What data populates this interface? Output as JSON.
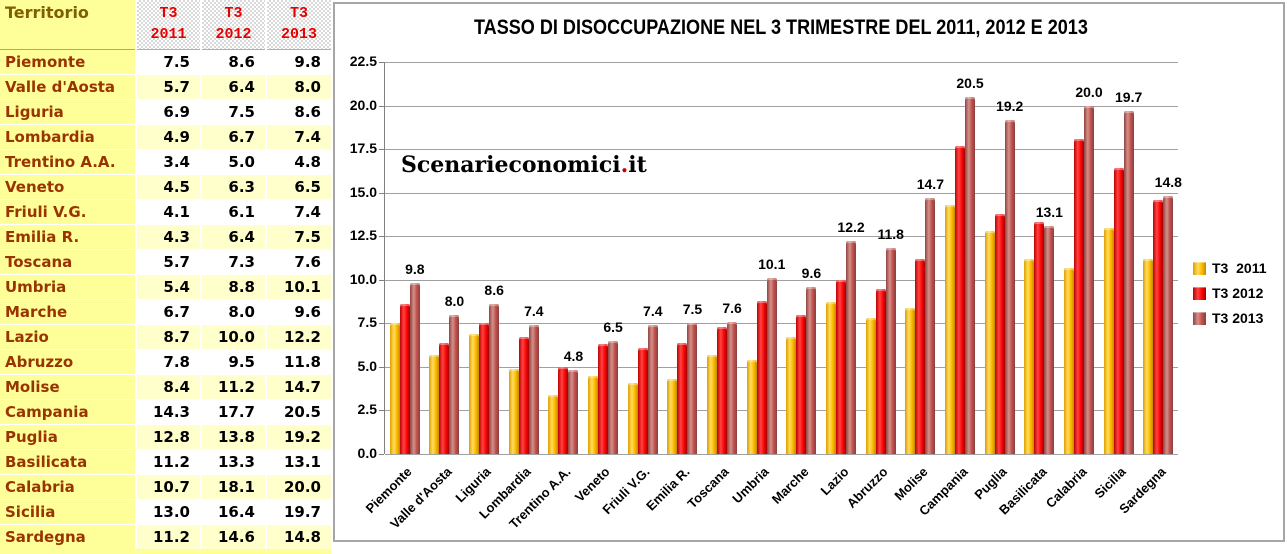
{
  "table": {
    "territory_header": "Territorio",
    "columns": [
      {
        "line1": "T3",
        "line2": "2011"
      },
      {
        "line1": "T3",
        "line2": "2012"
      },
      {
        "line1": "T3",
        "line2": "2013"
      }
    ],
    "rows": [
      {
        "name": "Piemonte",
        "values": [
          "7.5",
          "8.6",
          "9.8"
        ]
      },
      {
        "name": "Valle d'Aosta",
        "values": [
          "5.7",
          "6.4",
          "8.0"
        ]
      },
      {
        "name": "Liguria",
        "values": [
          "6.9",
          "7.5",
          "8.6"
        ]
      },
      {
        "name": "Lombardia",
        "values": [
          "4.9",
          "6.7",
          "7.4"
        ]
      },
      {
        "name": "Trentino A.A.",
        "values": [
          "3.4",
          "5.0",
          "4.8"
        ]
      },
      {
        "name": "Veneto",
        "values": [
          "4.5",
          "6.3",
          "6.5"
        ]
      },
      {
        "name": "Friuli V.G.",
        "values": [
          "4.1",
          "6.1",
          "7.4"
        ]
      },
      {
        "name": "Emilia R.",
        "values": [
          "4.3",
          "6.4",
          "7.5"
        ]
      },
      {
        "name": "Toscana",
        "values": [
          "5.7",
          "7.3",
          "7.6"
        ]
      },
      {
        "name": "Umbria",
        "values": [
          "5.4",
          "8.8",
          "10.1"
        ]
      },
      {
        "name": "Marche",
        "values": [
          "6.7",
          "8.0",
          "9.6"
        ]
      },
      {
        "name": "Lazio",
        "values": [
          "8.7",
          "10.0",
          "12.2"
        ]
      },
      {
        "name": "Abruzzo",
        "values": [
          "7.8",
          "9.5",
          "11.8"
        ]
      },
      {
        "name": "Molise",
        "values": [
          "8.4",
          "11.2",
          "14.7"
        ]
      },
      {
        "name": "Campania",
        "values": [
          "14.3",
          "17.7",
          "20.5"
        ]
      },
      {
        "name": "Puglia",
        "values": [
          "12.8",
          "13.8",
          "19.2"
        ]
      },
      {
        "name": "Basilicata",
        "values": [
          "11.2",
          "13.3",
          "13.1"
        ]
      },
      {
        "name": "Calabria",
        "values": [
          "10.7",
          "18.1",
          "20.0"
        ]
      },
      {
        "name": "Sicilia",
        "values": [
          "13.0",
          "16.4",
          "19.7"
        ]
      },
      {
        "name": "Sardegna",
        "values": [
          "11.2",
          "14.6",
          "14.8"
        ]
      }
    ]
  },
  "chart_data": {
    "type": "bar",
    "title": "TASSO DI DISOCCUPAZIONE NEL 3 TRIMESTRE DEL 2011, 2012 E 2013",
    "watermark": {
      "main": "Scenarieconomici",
      "dot": ".",
      "tld": "it"
    },
    "categories": [
      "Piemonte",
      "Valle d'Aosta",
      "Liguria",
      "Lombardia",
      "Trentino A.A.",
      "Veneto",
      "Friuli V.G.",
      "Emilia R.",
      "Toscana",
      "Umbria",
      "Marche",
      "Lazio",
      "Abruzzo",
      "Molise",
      "Campania",
      "Puglia",
      "Basilicata",
      "Calabria",
      "Sicilia",
      "Sardegna"
    ],
    "series": [
      {
        "name": "T3  2011",
        "color": "#FFC000",
        "values": [
          7.5,
          5.7,
          6.9,
          4.9,
          3.4,
          4.5,
          4.1,
          4.3,
          5.7,
          5.4,
          6.7,
          8.7,
          7.8,
          8.4,
          14.3,
          12.8,
          11.2,
          10.7,
          13.0,
          11.2
        ]
      },
      {
        "name": "T3 2012",
        "color": "#FF0000",
        "values": [
          8.6,
          6.4,
          7.5,
          6.7,
          5.0,
          6.3,
          6.1,
          6.4,
          7.3,
          8.8,
          8.0,
          10.0,
          9.5,
          11.2,
          17.7,
          13.8,
          13.3,
          18.1,
          16.4,
          14.6
        ]
      },
      {
        "name": "T3 2013",
        "color": "#C0504D",
        "values": [
          9.8,
          8.0,
          8.6,
          7.4,
          4.8,
          6.5,
          7.4,
          7.5,
          7.6,
          10.1,
          9.6,
          12.2,
          11.8,
          14.7,
          20.5,
          19.2,
          13.1,
          20.0,
          19.7,
          14.8
        ]
      }
    ],
    "data_labels": [
      "9.8",
      "8.0",
      "8.6",
      "7.4",
      "4.8",
      "6.5",
      "7.4",
      "7.5",
      "7.6",
      "10.1",
      "9.6",
      "12.2",
      "11.8",
      "14.7",
      "20.5",
      "19.2",
      "13.1",
      "20.0",
      "19.7",
      "14.8"
    ],
    "data_labels_series": "T3 2013",
    "xlabel": "",
    "ylabel": "",
    "ylim": [
      0,
      22.5
    ],
    "ytick_step": 2.5,
    "yticks": [
      "22.5",
      "20.0",
      "17.5",
      "15.0",
      "12.5",
      "10.0",
      "7.5",
      "5.0",
      "2.5",
      "0.0"
    ],
    "grid": true,
    "legend_position": "right"
  }
}
